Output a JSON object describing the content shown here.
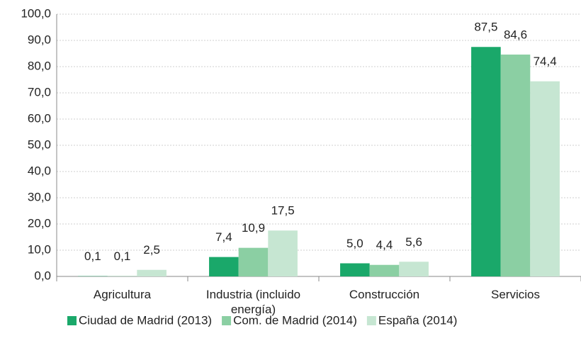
{
  "chart_data": {
    "type": "bar",
    "categories": [
      "Agricultura",
      "Industria (incluido energía)",
      "Construcción",
      "Servicios"
    ],
    "series": [
      {
        "name": "Ciudad de Madrid (2013)",
        "color": "#1aa86a",
        "values": [
          0.1,
          7.4,
          5.0,
          87.5
        ],
        "value_labels": [
          "0,1",
          "7,4",
          "5,0",
          "87,5"
        ]
      },
      {
        "name": "Com. de Madrid (2014)",
        "color": "#8bcfa3",
        "values": [
          0.1,
          10.9,
          4.4,
          84.6
        ],
        "value_labels": [
          "0,1",
          "10,9",
          "4,4",
          "84,6"
        ]
      },
      {
        "name": "España (2014)",
        "color": "#c6e6d2",
        "values": [
          2.5,
          17.5,
          5.6,
          74.4
        ],
        "value_labels": [
          "2,5",
          "17,5",
          "5,6",
          "74,4"
        ]
      }
    ],
    "ylim": [
      0,
      100
    ],
    "yticks": [
      {
        "value": 0,
        "label": "0,0"
      },
      {
        "value": 10,
        "label": "10,0"
      },
      {
        "value": 20,
        "label": "20,0"
      },
      {
        "value": 30,
        "label": "30,0"
      },
      {
        "value": 40,
        "label": "40,0"
      },
      {
        "value": 50,
        "label": "50,0"
      },
      {
        "value": 60,
        "label": "60,0"
      },
      {
        "value": 70,
        "label": "70,0"
      },
      {
        "value": 80,
        "label": "80,0"
      },
      {
        "value": 90,
        "label": "90,0"
      },
      {
        "value": 100,
        "label": "100,0"
      }
    ],
    "grid": true,
    "legend": "bottom"
  }
}
